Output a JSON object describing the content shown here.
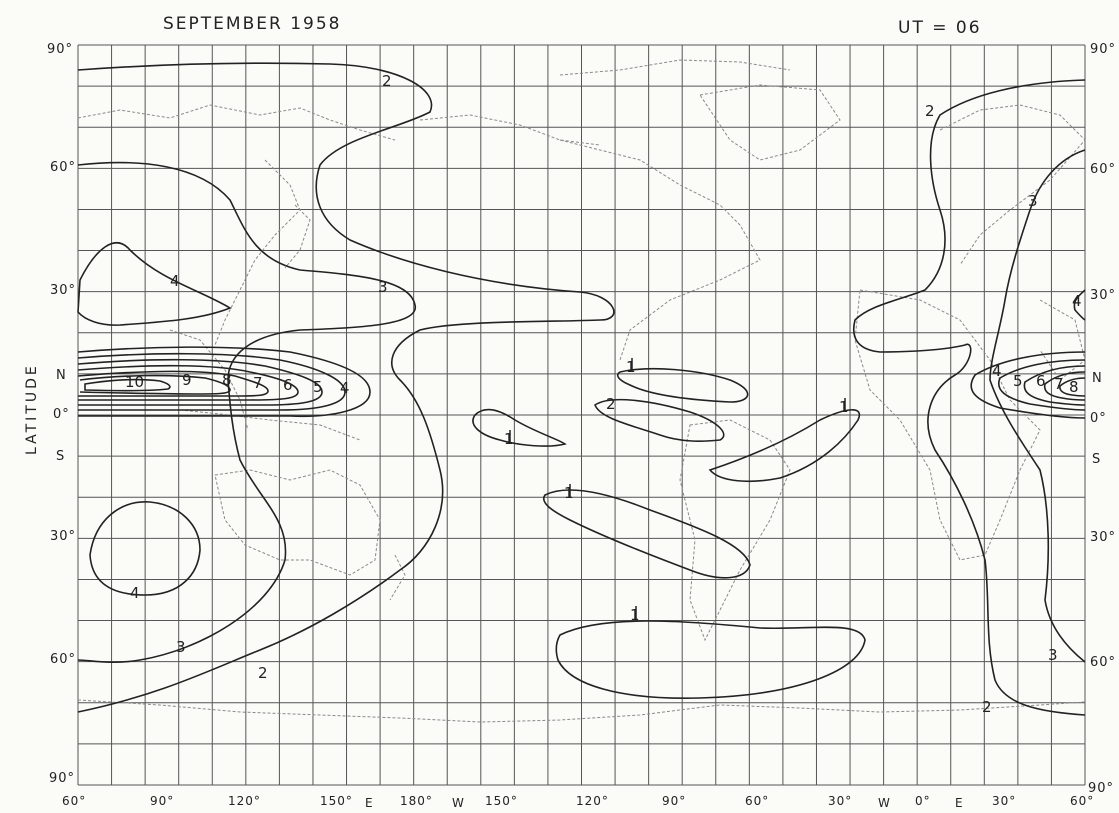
{
  "header": {
    "title": "SEPTEMBER 1958",
    "ut": "UT = 06"
  },
  "axes": {
    "y_title": "LATITUDE",
    "left_ticks": [
      "90°",
      "60°",
      "30°",
      "N",
      "0°",
      "S",
      "30°",
      "60°",
      "90°"
    ],
    "right_ticks": [
      "90°",
      "60°",
      "30°",
      "N",
      "0°",
      "S",
      "30°",
      "60°",
      "90°"
    ],
    "x_ticks": [
      "60°",
      "90°",
      "120°",
      "150°",
      "E",
      "180°",
      "W",
      "150°",
      "120°",
      "90°",
      "60°",
      "30°",
      "W",
      "0°",
      "E",
      "30°",
      "60°"
    ]
  },
  "contour_labels": [
    {
      "name": "contour-label-2-north",
      "text": "2"
    },
    {
      "name": "contour-label-3-pacific",
      "text": "3"
    },
    {
      "name": "contour-label-4-asia",
      "text": "4"
    },
    {
      "name": "contour-label-10",
      "text": "10"
    },
    {
      "name": "contour-label-9",
      "text": "9"
    },
    {
      "name": "contour-label-8",
      "text": "8"
    },
    {
      "name": "contour-label-7",
      "text": "7"
    },
    {
      "name": "contour-label-6",
      "text": "6"
    },
    {
      "name": "contour-label-5",
      "text": "5"
    },
    {
      "name": "contour-label-4-eq",
      "text": "4"
    },
    {
      "name": "contour-label-1-pacific",
      "text": "1"
    },
    {
      "name": "contour-label-1-carib",
      "text": "1"
    },
    {
      "name": "contour-label-2-carib",
      "text": "2"
    },
    {
      "name": "contour-label-1-atlantic",
      "text": "1"
    },
    {
      "name": "contour-label-1-sopac",
      "text": "1"
    },
    {
      "name": "contour-label-1-south",
      "text": "1"
    },
    {
      "name": "contour-label-4-indian",
      "text": "4"
    },
    {
      "name": "contour-label-3-south",
      "text": "3"
    },
    {
      "name": "contour-label-2-south",
      "text": "2"
    },
    {
      "name": "contour-label-2-europe",
      "text": "2"
    },
    {
      "name": "contour-label-3-europe",
      "text": "3"
    },
    {
      "name": "contour-label-4-right-30",
      "text": "4"
    },
    {
      "name": "contour-label-4-africa",
      "text": "4"
    },
    {
      "name": "contour-label-5-africa",
      "text": "5"
    },
    {
      "name": "contour-label-6-africa",
      "text": "6"
    },
    {
      "name": "contour-label-7-africa",
      "text": "7"
    },
    {
      "name": "contour-label-8-africa",
      "text": "8"
    },
    {
      "name": "contour-label-3-safrica",
      "text": "3"
    },
    {
      "name": "contour-label-2-safrica",
      "text": "2"
    }
  ],
  "colors": {
    "ink": "#222222",
    "grid": "#555555",
    "coast": "#8a8a8a",
    "paper": "#fbfbf8"
  }
}
